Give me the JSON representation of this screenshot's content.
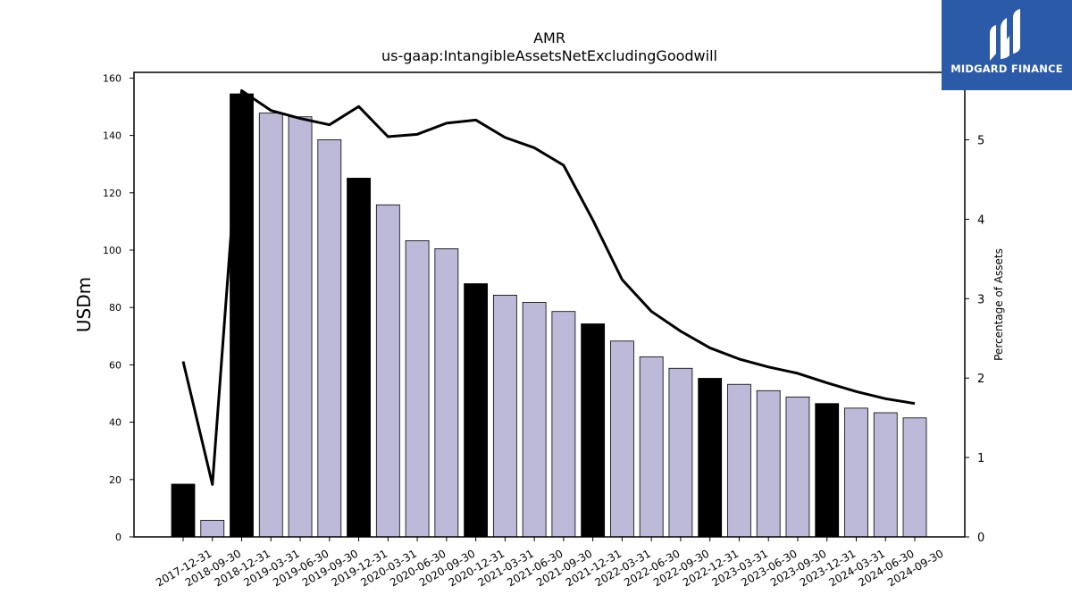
{
  "chart_data": {
    "type": "bar",
    "title": "AMR",
    "subtitle": "us-gaap:IntangibleAssetsNetExcludingGoodwill",
    "ylabel": "USDm",
    "y2label": "Percentage of Assets",
    "ylim": [
      0,
      162
    ],
    "y2lim": [
      0,
      5.85
    ],
    "yticks": [
      0,
      20,
      40,
      60,
      80,
      100,
      120,
      140,
      160
    ],
    "y2ticks": [
      0,
      1,
      2,
      3,
      4,
      5
    ],
    "categories": [
      "2017-12-31",
      "2018-09-30",
      "2018-12-31",
      "2019-03-31",
      "2019-06-30",
      "2019-09-30",
      "2019-12-31",
      "2020-03-31",
      "2020-06-30",
      "2020-09-30",
      "2020-12-31",
      "2021-03-31",
      "2021-06-30",
      "2021-09-30",
      "2021-12-31",
      "2022-03-31",
      "2022-06-30",
      "2022-09-30",
      "2022-12-31",
      "2023-03-31",
      "2023-06-30",
      "2023-09-30",
      "2023-12-31",
      "2024-03-31",
      "2024-06-30",
      "2024-09-30"
    ],
    "series": [
      {
        "type": "bar",
        "axis": "left",
        "values": [
          18.4,
          5.8,
          154.5,
          147.8,
          146.5,
          138.5,
          125.1,
          115.8,
          103.3,
          100.5,
          88.3,
          84.3,
          81.8,
          78.6,
          74.3,
          68.3,
          62.8,
          58.8,
          55.3,
          53.2,
          51.0,
          48.8,
          46.5,
          44.9,
          43.3,
          41.5
        ],
        "annual": [
          true,
          false,
          true,
          false,
          false,
          false,
          true,
          false,
          false,
          false,
          true,
          false,
          false,
          false,
          true,
          false,
          false,
          false,
          true,
          false,
          false,
          false,
          true,
          false,
          false,
          false
        ]
      },
      {
        "type": "line",
        "axis": "right",
        "values": [
          2.21,
          0.66,
          5.62,
          5.37,
          5.27,
          5.19,
          5.42,
          5.04,
          5.07,
          5.21,
          5.25,
          5.03,
          4.9,
          4.68,
          3.99,
          3.24,
          2.84,
          2.59,
          2.38,
          2.24,
          2.14,
          2.06,
          1.94,
          1.83,
          1.74,
          1.68
        ]
      }
    ],
    "colors": {
      "annual_bar": "#000000",
      "quarter_bar": "#bdb9d9",
      "line": "#000000"
    }
  },
  "logo": {
    "text": "MIDGARD FINANCE",
    "background": "#2b5aa8"
  }
}
